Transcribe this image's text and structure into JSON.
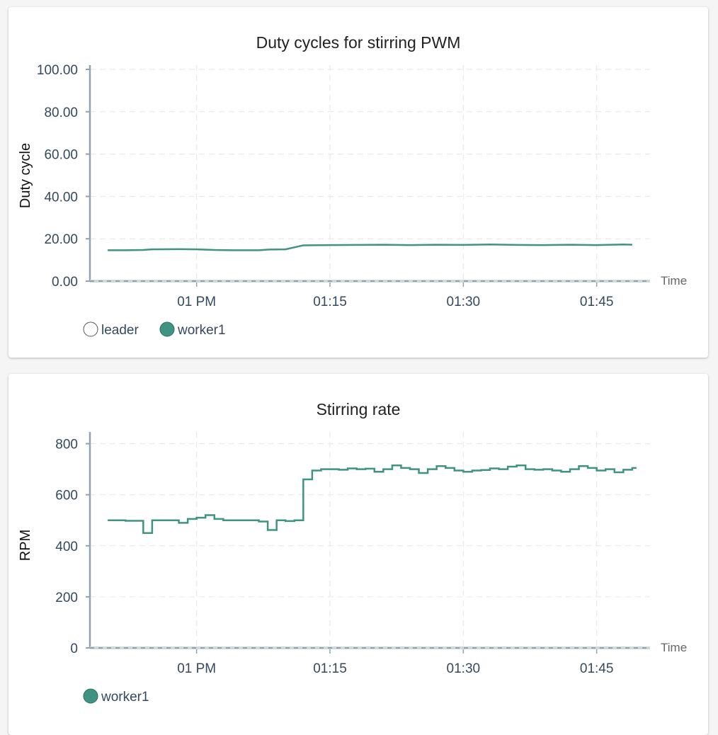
{
  "colors": {
    "series": "#3e9480",
    "axis": "#90a4ae",
    "grid": "#e6e6e6"
  },
  "chart_data": [
    {
      "type": "line",
      "title": "Duty cycles for stirring PWM",
      "ylabel": "Duty cycle",
      "xlabel": "Time",
      "ylim": [
        0,
        102
      ],
      "yticks": [
        0,
        20,
        40,
        60,
        80,
        100
      ],
      "ytick_labels": [
        "0.00",
        "20.00",
        "40.00",
        "60.00",
        "80.00",
        "100.00"
      ],
      "xlim": [
        "12:48",
        "13:51"
      ],
      "xticks": [
        "13:00",
        "13:15",
        "13:30",
        "13:45"
      ],
      "xtick_labels": [
        "01 PM",
        "01:15",
        "01:30",
        "01:45"
      ],
      "grid": true,
      "legend_position": "bottom-left",
      "legend": [
        {
          "name": "leader",
          "filled": false
        },
        {
          "name": "worker1",
          "filled": true
        }
      ],
      "series": [
        {
          "name": "worker1",
          "x": [
            "12:50",
            "12:52",
            "12:54",
            "12:55",
            "12:58",
            "13:00",
            "13:02",
            "13:04",
            "13:07",
            "13:08",
            "13:10",
            "13:12",
            "13:15",
            "13:18",
            "13:21",
            "13:24",
            "13:27",
            "13:30",
            "13:33",
            "13:36",
            "13:39",
            "13:42",
            "13:45",
            "13:48",
            "13:49"
          ],
          "y": [
            14.6,
            14.6,
            14.7,
            15.0,
            15.1,
            15.0,
            14.7,
            14.6,
            14.6,
            14.9,
            15.0,
            16.9,
            17.0,
            17.1,
            17.2,
            17.0,
            17.2,
            17.1,
            17.3,
            17.1,
            17.0,
            17.2,
            17.0,
            17.3,
            17.2
          ]
        }
      ]
    },
    {
      "type": "line",
      "title": "Stirring rate",
      "ylabel": "RPM",
      "xlabel": "Time",
      "ylim": [
        0,
        846
      ],
      "yticks": [
        0,
        200,
        400,
        600,
        800
      ],
      "ytick_labels": [
        "0",
        "200",
        "400",
        "600",
        "800"
      ],
      "xlim": [
        "12:48",
        "13:51"
      ],
      "xticks": [
        "13:00",
        "13:15",
        "13:30",
        "13:45"
      ],
      "xtick_labels": [
        "01 PM",
        "01:15",
        "01:30",
        "01:45"
      ],
      "grid": true,
      "legend_position": "bottom-left",
      "legend": [
        {
          "name": "worker1",
          "filled": true
        }
      ],
      "series": [
        {
          "name": "worker1",
          "step": true,
          "x": [
            "12:50",
            "12:51",
            "12:52",
            "12:53",
            "12:54",
            "12:55",
            "12:56",
            "12:57",
            "12:58",
            "12:59",
            "13:00",
            "13:01",
            "13:02",
            "13:03",
            "13:04",
            "13:05",
            "13:06",
            "13:07",
            "13:08",
            "13:09",
            "13:10",
            "13:11",
            "13:12",
            "13:13",
            "13:14",
            "13:15",
            "13:16",
            "13:17",
            "13:18",
            "13:19",
            "13:20",
            "13:21",
            "13:22",
            "13:23",
            "13:24",
            "13:25",
            "13:26",
            "13:27",
            "13:28",
            "13:29",
            "13:30",
            "13:31",
            "13:32",
            "13:33",
            "13:34",
            "13:35",
            "13:36",
            "13:37",
            "13:38",
            "13:39",
            "13:40",
            "13:41",
            "13:42",
            "13:43",
            "13:44",
            "13:45",
            "13:46",
            "13:47",
            "13:48",
            "13:49"
          ],
          "y": [
            500,
            500,
            498,
            498,
            450,
            500,
            500,
            500,
            490,
            505,
            510,
            520,
            505,
            500,
            500,
            500,
            500,
            495,
            462,
            500,
            497,
            500,
            660,
            695,
            700,
            700,
            698,
            703,
            700,
            702,
            690,
            700,
            715,
            705,
            700,
            685,
            700,
            712,
            705,
            695,
            690,
            695,
            697,
            703,
            700,
            710,
            715,
            700,
            698,
            700,
            695,
            690,
            700,
            712,
            705,
            695,
            700,
            688,
            698,
            705
          ]
        }
      ]
    }
  ]
}
